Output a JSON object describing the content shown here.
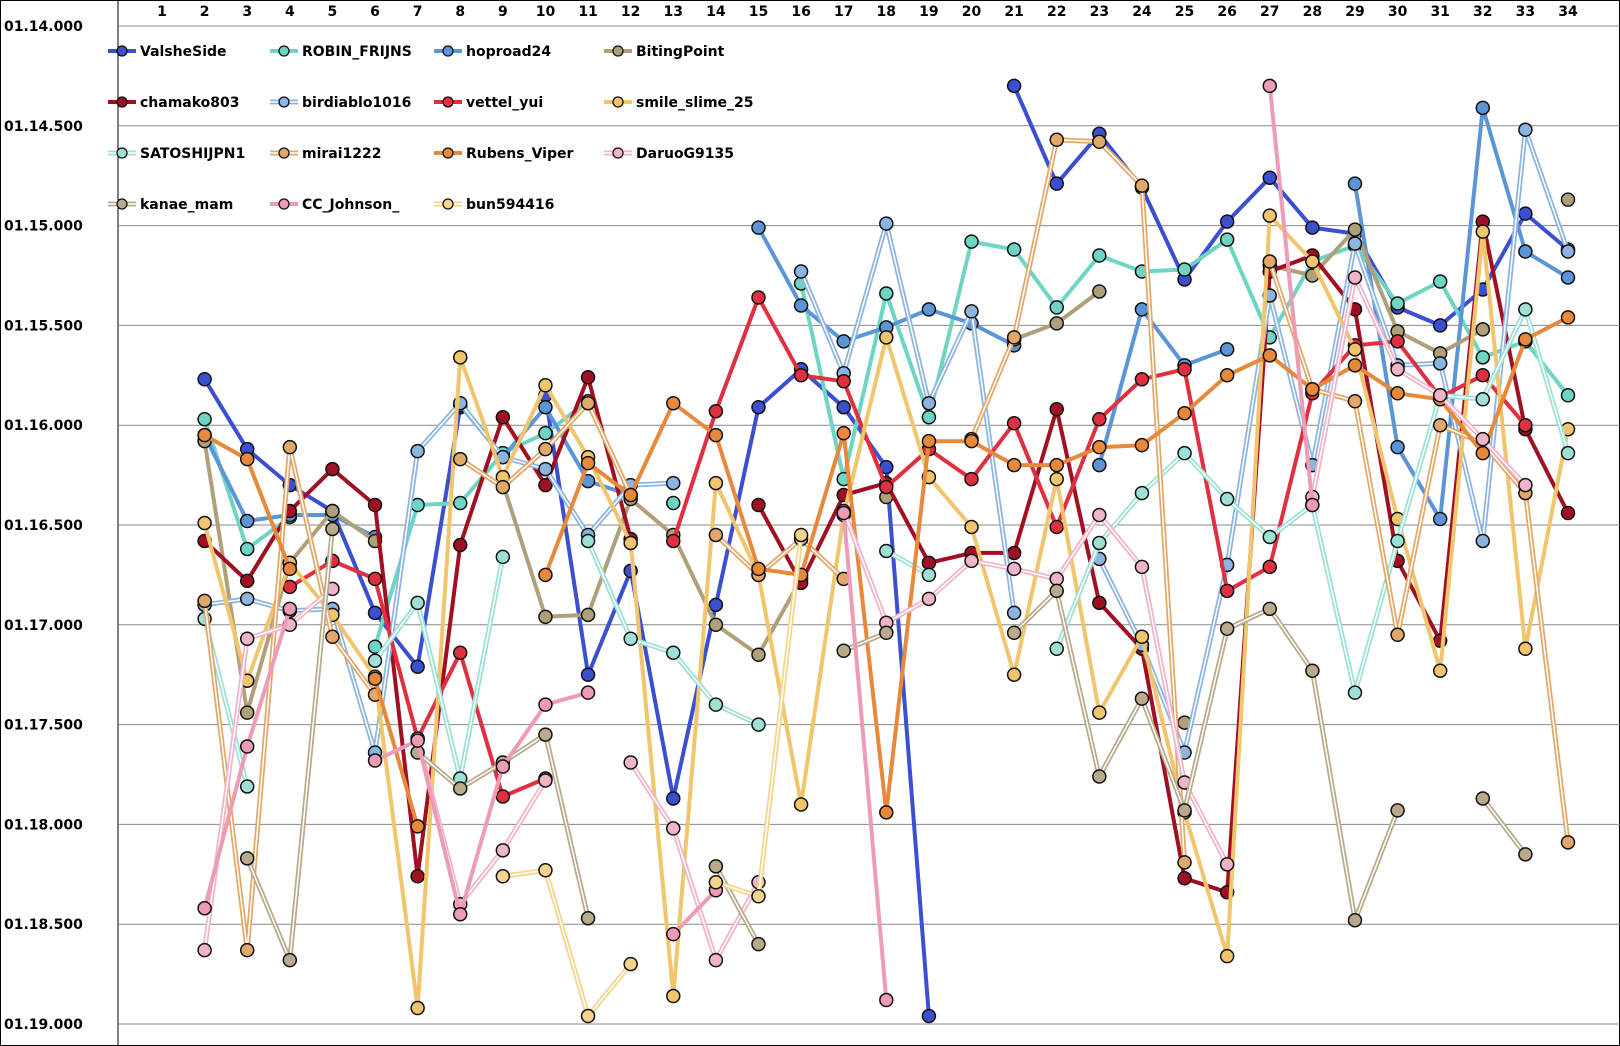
{
  "chart_data": {
    "type": "line",
    "x": [
      "1",
      "2",
      "3",
      "4",
      "5",
      "6",
      "7",
      "8",
      "9",
      "10",
      "11",
      "12",
      "13",
      "14",
      "15",
      "16",
      "17",
      "18",
      "19",
      "20",
      "21",
      "22",
      "23",
      "24",
      "25",
      "26",
      "27",
      "28",
      "29",
      "30",
      "31",
      "32",
      "33",
      "34"
    ],
    "y_tick_labels": [
      "01.14.000",
      "01.14.500",
      "01.15.000",
      "01.15.500",
      "01.16.000",
      "01.16.500",
      "01.17.000",
      "01.17.500",
      "01.18.000",
      "01.18.500",
      "01.19.000"
    ],
    "ylim": [
      74.0,
      79.0
    ],
    "y_inverted": true,
    "grid": true,
    "legend_position": "top-left",
    "series": [
      {
        "name": "ValsheSide",
        "color": "#3b4fd1",
        "style": "solid",
        "values": [
          null,
          75.77,
          76.12,
          76.3,
          76.43,
          76.94,
          77.21,
          75.91,
          null,
          75.85,
          77.25,
          76.73,
          77.87,
          76.9,
          75.91,
          75.72,
          75.91,
          76.21,
          78.96,
          null,
          74.3,
          74.79,
          74.54,
          74.81,
          75.27,
          74.98,
          74.76,
          75.01,
          75.04,
          75.41,
          75.5,
          75.32,
          74.94,
          75.12
        ]
      },
      {
        "name": "ROBIN_FRIJNS",
        "color": "#6ed5c4",
        "style": "solid",
        "values": [
          null,
          75.97,
          76.62,
          76.46,
          null,
          77.11,
          76.4,
          76.39,
          76.14,
          76.04,
          75.88,
          null,
          76.39,
          null,
          null,
          75.29,
          76.27,
          75.34,
          75.96,
          75.08,
          75.12,
          75.41,
          75.15,
          75.23,
          75.22,
          75.07,
          75.56,
          75.18,
          75.1,
          75.39,
          75.28,
          75.66,
          75.58,
          75.85
        ]
      },
      {
        "name": "hoproad24",
        "color": "#5b95d8",
        "style": "solid",
        "values": [
          null,
          76.05,
          76.48,
          76.45,
          76.45,
          76.56,
          null,
          75.9,
          76.16,
          75.91,
          76.28,
          76.35,
          null,
          null,
          75.01,
          75.4,
          75.58,
          75.51,
          75.42,
          75.49,
          75.6,
          null,
          76.2,
          75.42,
          75.7,
          75.62,
          null,
          null,
          74.79,
          76.11,
          76.47,
          74.41,
          75.13,
          75.26
        ]
      },
      {
        "name": "BitingPoint",
        "color": "#b0a07a",
        "style": "solid",
        "values": [
          null,
          76.08,
          77.44,
          76.69,
          76.43,
          76.58,
          null,
          null,
          76.29,
          76.96,
          76.95,
          76.37,
          76.55,
          77.0,
          77.15,
          76.77,
          null,
          76.36,
          null,
          null,
          75.57,
          75.49,
          75.33,
          null,
          77.49,
          null,
          75.2,
          75.25,
          75.02,
          75.53,
          75.64,
          75.52,
          null,
          74.87
        ]
      },
      {
        "name": "chamako803",
        "color": "#a01022",
        "style": "solid",
        "values": [
          null,
          76.58,
          76.78,
          76.43,
          76.22,
          76.4,
          78.26,
          76.6,
          75.96,
          76.3,
          75.76,
          76.57,
          null,
          null,
          76.4,
          76.79,
          76.35,
          76.29,
          76.69,
          76.64,
          76.64,
          75.92,
          76.89,
          77.12,
          78.27,
          78.34,
          75.23,
          75.15,
          75.42,
          76.68,
          77.08,
          74.98,
          76.02,
          76.44
        ]
      },
      {
        "name": "birdiablo1016",
        "color": "#8cb4e0",
        "style": "double",
        "values": [
          null,
          76.9,
          76.87,
          76.93,
          76.92,
          77.64,
          76.13,
          75.89,
          76.16,
          76.22,
          76.55,
          76.3,
          76.29,
          null,
          null,
          75.23,
          75.74,
          74.99,
          75.89,
          75.43,
          76.94,
          null,
          76.67,
          77.1,
          77.64,
          76.7,
          75.35,
          76.2,
          75.09,
          75.7,
          75.69,
          76.58,
          74.52,
          75.13
        ]
      },
      {
        "name": "vettel_yui",
        "color": "#e03040",
        "style": "solid",
        "values": [
          null,
          null,
          null,
          76.81,
          76.68,
          76.77,
          77.57,
          77.14,
          77.86,
          77.77,
          null,
          null,
          76.58,
          75.93,
          75.36,
          75.75,
          75.78,
          76.31,
          76.12,
          76.27,
          75.99,
          76.51,
          75.97,
          75.77,
          75.72,
          76.83,
          76.71,
          75.84,
          75.6,
          75.58,
          75.86,
          75.75,
          76.0,
          null
        ]
      },
      {
        "name": "smile_slime_25",
        "color": "#f1c56e",
        "style": "solid",
        "values": [
          null,
          76.49,
          77.28,
          76.69,
          76.95,
          77.26,
          78.92,
          75.66,
          76.26,
          75.8,
          76.16,
          76.59,
          78.86,
          76.29,
          76.75,
          77.9,
          76.45,
          75.56,
          76.26,
          76.51,
          77.25,
          76.27,
          77.44,
          77.06,
          77.94,
          78.66,
          74.95,
          75.18,
          75.62,
          76.47,
          77.23,
          75.03,
          77.12,
          76.02
        ]
      },
      {
        "name": "SATOSHIJPN1",
        "color": "#9de1d6",
        "style": "double",
        "values": [
          null,
          76.97,
          77.81,
          null,
          null,
          77.18,
          76.89,
          77.77,
          76.66,
          null,
          76.58,
          77.07,
          77.14,
          77.4,
          77.5,
          null,
          null,
          76.63,
          76.75,
          null,
          null,
          77.12,
          76.59,
          76.34,
          76.14,
          76.37,
          76.56,
          76.4,
          77.34,
          76.58,
          75.85,
          75.87,
          75.42,
          76.14
        ]
      },
      {
        "name": "mirai1222",
        "color": "#e2a86a",
        "style": "double",
        "values": [
          null,
          76.88,
          78.63,
          76.11,
          77.06,
          77.35,
          null,
          76.17,
          76.31,
          76.12,
          75.89,
          76.35,
          null,
          76.55,
          76.75,
          76.57,
          76.77,
          null,
          null,
          76.07,
          75.56,
          74.57,
          74.58,
          74.8,
          78.19,
          null,
          75.18,
          75.82,
          75.88,
          77.05,
          76.0,
          76.09,
          76.34,
          78.09
        ]
      },
      {
        "name": "Rubens_Viper",
        "color": "#e8883a",
        "style": "solid",
        "values": [
          null,
          76.05,
          76.17,
          76.72,
          null,
          77.27,
          78.01,
          null,
          null,
          76.75,
          76.19,
          76.35,
          75.89,
          76.05,
          76.72,
          76.75,
          76.04,
          77.94,
          76.08,
          76.08,
          76.2,
          76.2,
          76.11,
          76.1,
          75.94,
          75.75,
          75.65,
          75.82,
          75.7,
          75.84,
          75.87,
          76.14,
          75.57,
          75.46
        ]
      },
      {
        "name": "DaruoG9135",
        "color": "#f0b4c8",
        "style": "double",
        "values": [
          null,
          78.63,
          77.07,
          77.0,
          76.82,
          null,
          77.57,
          78.4,
          78.13,
          77.78,
          null,
          77.69,
          78.02,
          78.68,
          78.29,
          null,
          76.43,
          76.99,
          76.87,
          76.68,
          76.72,
          76.77,
          76.45,
          76.71,
          77.79,
          78.2,
          null,
          76.36,
          75.26,
          75.72,
          75.85,
          76.07,
          76.3,
          null
        ]
      },
      {
        "name": "kanae_mam",
        "color": "#b8aa8a",
        "style": "double",
        "values": [
          null,
          null,
          78.17,
          78.68,
          76.52,
          null,
          77.64,
          77.82,
          77.69,
          77.55,
          78.47,
          null,
          null,
          78.21,
          78.6,
          null,
          77.13,
          77.04,
          null,
          null,
          77.04,
          76.83,
          77.76,
          77.37,
          77.93,
          77.02,
          76.92,
          77.23,
          78.48,
          77.93,
          null,
          77.87,
          78.15,
          null
        ]
      },
      {
        "name": "CC_Johnson_",
        "color": "#ee9cb5",
        "style": "solid",
        "values": [
          null,
          78.42,
          77.61,
          76.92,
          null,
          77.68,
          77.58,
          78.45,
          77.71,
          77.4,
          77.34,
          null,
          78.55,
          78.33,
          null,
          null,
          76.44,
          78.88,
          null,
          null,
          null,
          null,
          null,
          null,
          null,
          null,
          74.3,
          76.4,
          null,
          null,
          null,
          null,
          null,
          null
        ]
      },
      {
        "name": "bun594416",
        "color": "#f4d48a",
        "style": "double",
        "values": [
          null,
          null,
          null,
          null,
          null,
          null,
          null,
          null,
          78.26,
          78.23,
          78.96,
          78.7,
          null,
          78.29,
          78.36,
          76.55,
          null,
          null,
          null,
          null,
          null,
          null,
          null,
          null,
          null,
          null,
          null,
          null,
          null,
          null,
          null,
          null,
          null,
          null
        ]
      }
    ]
  }
}
